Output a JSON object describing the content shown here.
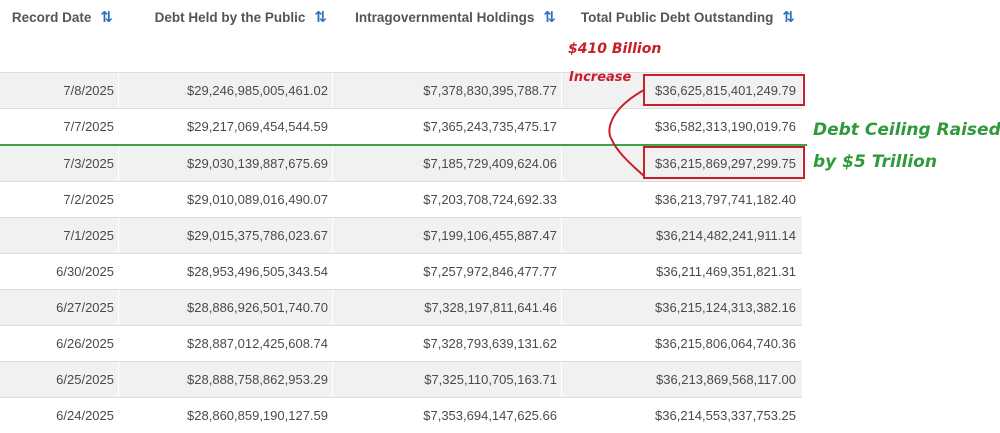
{
  "headers": {
    "record_date": "Record Date",
    "debt_public": "Debt Held by the Public",
    "intragov": "Intragovernmental Holdings",
    "total": "Total Public Debt Outstanding",
    "sort_icon": "⇅"
  },
  "rows": [
    {
      "date": "7/8/2025",
      "public": "$29,246,985,005,461.02",
      "intragov": "$7,378,830,395,788.77",
      "total": "$36,625,815,401,249.79"
    },
    {
      "date": "7/7/2025",
      "public": "$29,217,069,454,544.59",
      "intragov": "$7,365,243,735,475.17",
      "total": "$36,582,313,190,019.76"
    },
    {
      "date": "7/3/2025",
      "public": "$29,030,139,887,675.69",
      "intragov": "$7,185,729,409,624.06",
      "total": "$36,215,869,297,299.75"
    },
    {
      "date": "7/2/2025",
      "public": "$29,010,089,016,490.07",
      "intragov": "$7,203,708,724,692.33",
      "total": "$36,213,797,741,182.40"
    },
    {
      "date": "7/1/2025",
      "public": "$29,015,375,786,023.67",
      "intragov": "$7,199,106,455,887.47",
      "total": "$36,214,482,241,911.14"
    },
    {
      "date": "6/30/2025",
      "public": "$28,953,496,505,343.54",
      "intragov": "$7,257,972,846,477.77",
      "total": "$36,211,469,351,821.31"
    },
    {
      "date": "6/27/2025",
      "public": "$28,886,926,501,740.70",
      "intragov": "$7,328,197,811,641.46",
      "total": "$36,215,124,313,382.16"
    },
    {
      "date": "6/26/2025",
      "public": "$28,887,012,425,608.74",
      "intragov": "$7,328,793,639,131.62",
      "total": "$36,215,806,064,740.36"
    },
    {
      "date": "6/25/2025",
      "public": "$28,888,758,862,953.29",
      "intragov": "$7,325,110,705,163.71",
      "total": "$36,213,869,568,117.00"
    },
    {
      "date": "6/24/2025",
      "public": "$28,860,859,190,127.59",
      "intragov": "$7,353,694,147,625.66",
      "total": "$36,214,553,337,753.25"
    }
  ],
  "annotations": {
    "increase_line1": "$410 Billion",
    "increase_line2": "Increase",
    "ceiling_line1": "Debt Ceiling Raised",
    "ceiling_line2": "by $5 Trillion"
  },
  "colors": {
    "accent_red": "#c8202a",
    "accent_green": "#3aa447",
    "sort_blue": "#2a73b8"
  }
}
